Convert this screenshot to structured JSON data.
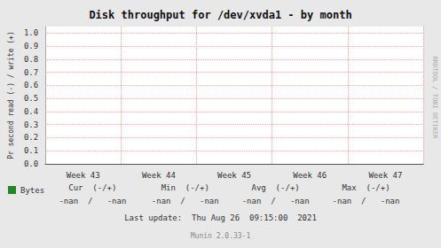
{
  "chart_data": {
    "type": "line",
    "title": "Disk throughput for /dev/xvda1 - by month",
    "y_label": "Pr second read (-) / write (+)",
    "categories": [
      "Week 43",
      "Week 44",
      "Week 45",
      "Week 46",
      "Week 47"
    ],
    "series": [
      {
        "name": "Bytes",
        "color": "#228822",
        "values": [
          null,
          null,
          null,
          null,
          null
        ]
      }
    ],
    "ylim": [
      0.0,
      1.05
    ],
    "yticks": [
      {
        "value": 0.0,
        "label": "0.0"
      },
      0.1,
      0.2,
      0.3,
      0.4,
      0.5,
      0.6,
      0.7,
      0.8,
      0.9,
      {
        "value": 1.0,
        "label": "1.0"
      }
    ],
    "grid": true,
    "legend": "lower left",
    "annotations": [
      "Cur  (-/+)",
      "Min  (-/+)",
      "Avg  (-/+)",
      "Max  (-/+)",
      "-nan  /   -nan",
      "-nan  /   -nan",
      "-nan  /   -nan",
      "-nan  /   -nan",
      "Last update:  Thu Aug 26  09:15:00  2021",
      "Munin 2.0.33-1",
      "RRDTOOL / TOBI OETIKER"
    ]
  }
}
